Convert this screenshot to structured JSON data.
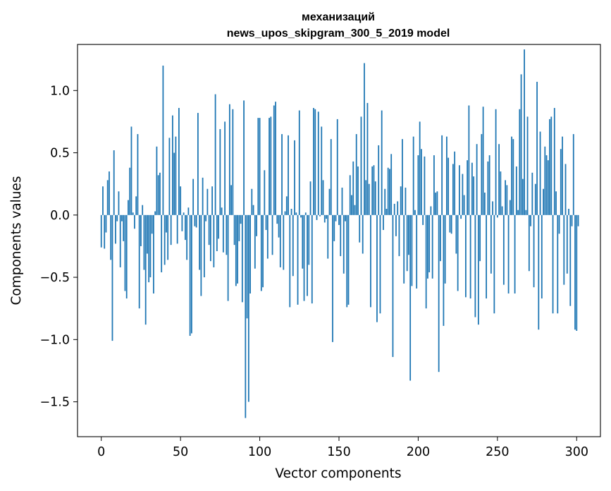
{
  "chart_data": {
    "type": "bar",
    "title_line1": "механизаций",
    "title_line2": "news_upos_skipgram_300_5_2019 model",
    "xlabel": "Vector components",
    "ylabel": "Components values",
    "xlim": [
      -15,
      315
    ],
    "ylim": [
      -1.78,
      1.37
    ],
    "xticks": [
      0,
      50,
      100,
      150,
      200,
      250,
      300
    ],
    "xtick_labels": [
      "0",
      "50",
      "100",
      "150",
      "200",
      "250",
      "300"
    ],
    "yticks": [
      1.0,
      0.5,
      0.0,
      -0.5,
      -1.0,
      -1.5
    ],
    "ytick_labels": [
      "1.0",
      "0.5",
      "0.0",
      "−0.5",
      "−1.0",
      "−1.5"
    ],
    "bar_color": "#1f77b4",
    "values": [
      -0.26,
      0.23,
      -0.27,
      -0.14,
      0.28,
      0.35,
      -0.36,
      -1.01,
      0.52,
      -0.23,
      -0.05,
      0.19,
      -0.42,
      -0.05,
      -0.21,
      -0.61,
      -0.67,
      0.12,
      0.38,
      0.71,
      0.02,
      -0.11,
      0.15,
      0.65,
      -0.75,
      -0.25,
      0.08,
      -0.44,
      -0.88,
      -0.31,
      -0.54,
      -0.5,
      -0.15,
      -0.63,
      0.03,
      0.55,
      0.32,
      0.34,
      -0.46,
      1.2,
      -0.4,
      -0.14,
      -0.36,
      0.62,
      -0.24,
      0.8,
      0.5,
      0.63,
      -0.23,
      0.86,
      0.23,
      -0.13,
      0.02,
      -0.2,
      -0.36,
      0.06,
      -0.97,
      -0.95,
      0.29,
      -0.09,
      -0.1,
      0.82,
      -0.44,
      -0.65,
      0.3,
      -0.5,
      -0.05,
      0.21,
      -0.24,
      -0.37,
      0.23,
      -0.42,
      0.97,
      -0.29,
      -0.19,
      0.69,
      0.06,
      -0.3,
      0.75,
      -0.32,
      -0.69,
      0.89,
      0.24,
      0.85,
      -0.24,
      -0.57,
      -0.55,
      -0.21,
      -0.07,
      -0.7,
      0.92,
      -1.63,
      -0.83,
      -1.5,
      -0.63,
      0.21,
      0.08,
      -0.43,
      -0.17,
      0.78,
      0.78,
      -0.61,
      -0.58,
      0.36,
      -0.12,
      -0.35,
      0.78,
      0.79,
      -0.32,
      0.88,
      0.91,
      -0.07,
      -0.18,
      -0.42,
      0.65,
      -0.44,
      0.03,
      0.15,
      0.64,
      -0.74,
      0.05,
      -0.49,
      0.6,
      0.02,
      -0.72,
      0.84,
      -0.02,
      -0.43,
      -0.69,
      0.02,
      -0.65,
      -0.4,
      0.27,
      -0.71,
      0.86,
      0.85,
      -0.04,
      0.83,
      -0.01,
      0.71,
      0.28,
      -0.06,
      -0.03,
      -0.35,
      0.21,
      0.61,
      -1.02,
      -0.21,
      -0.05,
      0.77,
      -0.08,
      -0.33,
      0.22,
      -0.47,
      -0.05,
      -0.74,
      -0.72,
      0.32,
      0.16,
      0.43,
      0.08,
      0.65,
      0.39,
      -0.22,
      0.79,
      -0.31,
      1.22,
      0.28,
      0.9,
      0.25,
      -0.74,
      0.39,
      0.4,
      0.27,
      -0.86,
      0.56,
      -0.79,
      0.84,
      -0.12,
      0.21,
      0.05,
      0.38,
      0.37,
      0.49,
      -1.14,
      0.09,
      -0.17,
      0.11,
      -0.33,
      0.23,
      0.61,
      -0.55,
      0.22,
      -0.45,
      -0.32,
      -1.33,
      -0.57,
      0.63,
      0.04,
      -0.59,
      0.48,
      0.75,
      0.53,
      -0.08,
      0.47,
      -0.75,
      -0.51,
      -0.46,
      0.07,
      -0.51,
      0.48,
      0.18,
      0.19,
      -1.26,
      -0.37,
      0.64,
      -0.89,
      -0.55,
      0.63,
      0.46,
      -0.14,
      -0.15,
      0.41,
      0.51,
      -0.31,
      -0.61,
      0.4,
      -0.03,
      0.33,
      0.16,
      -0.66,
      0.44,
      0.88,
      -0.67,
      0.42,
      0.31,
      -0.82,
      0.57,
      -0.88,
      -0.37,
      0.65,
      0.87,
      0.18,
      -0.67,
      0.43,
      0.48,
      -0.47,
      0.11,
      -0.79,
      0.85,
      -0.02,
      0.57,
      0.35,
      0.07,
      -0.56,
      0.28,
      0.24,
      -0.63,
      0.12,
      0.63,
      0.61,
      -0.63,
      0.39,
      0.04,
      0.85,
      1.13,
      0.29,
      1.33,
      0.04,
      0.79,
      -0.45,
      -0.09,
      0.34,
      -0.58,
      0.25,
      1.07,
      -0.92,
      0.67,
      -0.67,
      0.21,
      0.55,
      0.48,
      0.44,
      0.77,
      0.79,
      -0.79,
      0.86,
      0.19,
      -0.79,
      -0.15,
      0.53,
      0.63,
      -0.56,
      0.41,
      -0.47,
      0.05,
      -0.73,
      -0.09,
      0.65,
      -0.92,
      -0.93,
      -0.09
    ]
  }
}
